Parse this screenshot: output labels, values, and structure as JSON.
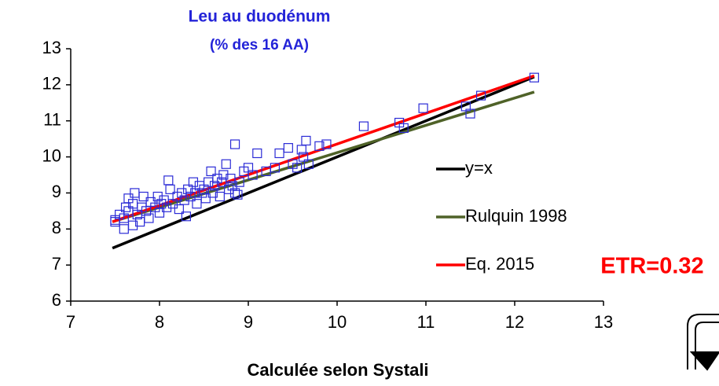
{
  "chart_data": {
    "type": "scatter",
    "title": "Leu au duodénum",
    "subtitle": "(% des 16 AA)",
    "x_label": "Calculée selon Systali",
    "annotation": "ETR=0.32",
    "xlim": [
      7,
      13
    ],
    "xticks": [
      7,
      8,
      9,
      10,
      11,
      12,
      13
    ],
    "ylim": [
      6,
      13
    ],
    "yticks": [
      6,
      7,
      8,
      9,
      10,
      11,
      12,
      13
    ],
    "series": [
      {
        "name": "y=x",
        "color": "#000000",
        "x": [
          7.47,
          12.22
        ],
        "values": [
          7.47,
          12.22
        ]
      },
      {
        "name": "Rulquin 1998",
        "color": "#4f6228",
        "x": [
          7.47,
          12.22
        ],
        "values": [
          8.2,
          11.8
        ]
      },
      {
        "name": "Eq. 2015",
        "color": "#ff0000",
        "x": [
          7.47,
          12.22
        ],
        "values": [
          8.2,
          12.25
        ]
      }
    ],
    "points": {
      "color": "#2b2bd6",
      "x": [
        7.5,
        7.5,
        7.55,
        7.6,
        7.6,
        7.62,
        7.65,
        7.65,
        7.7,
        7.7,
        7.72,
        7.75,
        7.78,
        7.8,
        7.82,
        7.85,
        7.88,
        7.9,
        7.95,
        7.98,
        8.0,
        8.02,
        8.05,
        8.08,
        8.1,
        8.12,
        8.15,
        8.2,
        8.22,
        8.25,
        8.28,
        8.3,
        8.32,
        8.35,
        8.38,
        8.4,
        8.42,
        8.45,
        8.48,
        8.5,
        8.52,
        8.55,
        8.58,
        8.6,
        8.62,
        8.65,
        8.68,
        8.7,
        8.72,
        8.75,
        8.78,
        8.8,
        8.82,
        8.85,
        8.85,
        8.88,
        8.9,
        8.95,
        9.0,
        9.05,
        9.1,
        9.2,
        9.3,
        9.35,
        9.45,
        9.5,
        9.55,
        9.6,
        9.62,
        9.65,
        9.68,
        9.8,
        9.88,
        10.3,
        10.7,
        10.75,
        10.97,
        11.45,
        11.5,
        11.62,
        12.22
      ],
      "values": [
        8.2,
        8.25,
        8.4,
        8.3,
        8.0,
        8.6,
        8.85,
        8.5,
        8.1,
        8.7,
        9.0,
        8.4,
        8.2,
        8.6,
        8.9,
        8.5,
        8.3,
        8.75,
        8.6,
        8.9,
        8.45,
        8.7,
        8.8,
        8.6,
        9.35,
        9.1,
        8.7,
        8.9,
        8.55,
        9.0,
        8.8,
        8.35,
        9.1,
        8.9,
        9.3,
        9.0,
        8.7,
        9.2,
        9.0,
        9.1,
        8.85,
        9.3,
        9.6,
        9.0,
        9.2,
        9.4,
        8.9,
        9.3,
        9.5,
        9.8,
        9.1,
        9.4,
        9.2,
        10.35,
        9.0,
        8.95,
        9.3,
        9.6,
        9.7,
        9.5,
        10.1,
        9.6,
        9.7,
        10.1,
        10.25,
        9.8,
        9.7,
        10.2,
        10.0,
        10.45,
        9.8,
        10.3,
        10.35,
        10.85,
        10.95,
        10.8,
        11.35,
        11.4,
        11.2,
        11.7,
        12.2
      ]
    }
  }
}
